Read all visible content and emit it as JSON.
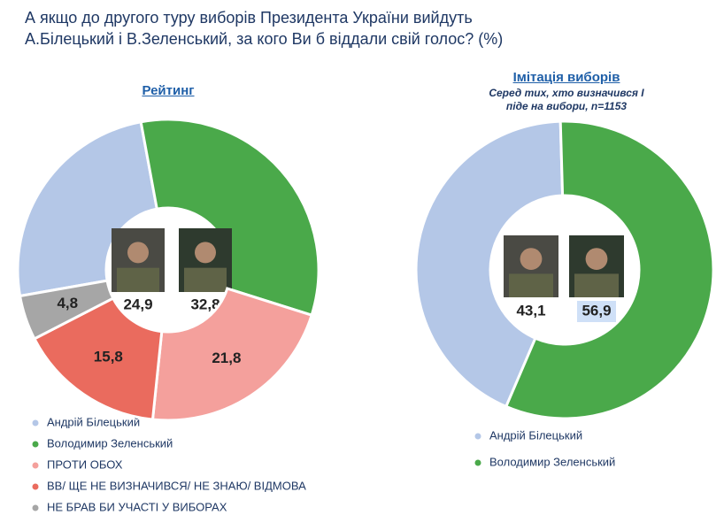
{
  "title": "А якщо до другого туру виборів Президента України вийдуть А.Білецький і В.Зеленський, за кого Ви б віддали свій голос? (%)",
  "chart_data": [
    {
      "type": "pie",
      "title": "Рейтинг",
      "categories": [
        "Андрій Білецький",
        "Володимир Зеленський",
        "ПРОТИ ОБОХ",
        "ВВ/ ЩЕ НЕ ВИЗНАЧИВСЯ/ НЕ ЗНАЮ/ ВІДМОВА",
        "НЕ БРАВ БИ УЧАСТІ У ВИБОРАХ"
      ],
      "values": [
        24.9,
        32.8,
        21.8,
        15.8,
        4.8
      ],
      "value_labels": [
        "24,9",
        "32,8",
        "21,8",
        "15,8",
        "4,8"
      ],
      "colors": [
        "#b4c7e7",
        "#4aa94a",
        "#f4a09c",
        "#ea6b5e",
        "#a6a6a6"
      ]
    },
    {
      "type": "pie",
      "title": "Імітація виборів",
      "subtitle": "Серед тих, хто визначився І піде на вибори, n=1153",
      "categories": [
        "Андрій Білецький",
        "Володимир Зеленський"
      ],
      "values": [
        43.1,
        56.9
      ],
      "value_labels": [
        "43,1",
        "56,9"
      ],
      "colors": [
        "#b4c7e7",
        "#4aa94a"
      ]
    }
  ]
}
